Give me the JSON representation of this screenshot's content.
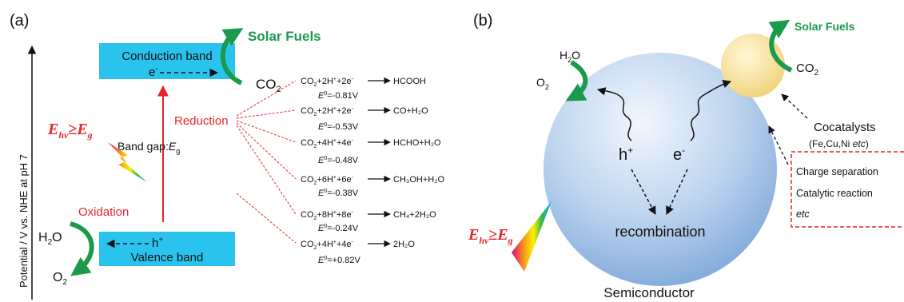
{
  "panel_a": {
    "label": "(a)",
    "axis_label": "Potential / V vs. NHE at pH 7",
    "conduction_band": "Conduction band",
    "valence_band": "Valence band",
    "electron": "e",
    "electron_sup": "-",
    "hole": "h",
    "hole_sup": "+",
    "solar_fuels": "Solar Fuels",
    "co2": "CO",
    "co2_sub": "2",
    "h2o": "H",
    "h2o_sub": "2",
    "h2o_tail": "O",
    "o2": "O",
    "o2_sub": "2",
    "reduction": "Reduction",
    "oxidation": "Oxidation",
    "band_gap": "Band gap:",
    "band_gap_sym": "E",
    "band_gap_sub": "g",
    "energy_cond": {
      "e": "E",
      "hv": "hv",
      "ge": "≥",
      "E": "E",
      "g": "g"
    },
    "colors": {
      "band": "#29c3ee",
      "red": "#e8242a",
      "green": "#1a9a4a"
    },
    "reactions": [
      {
        "lhs_pre": "CO",
        "lhs_sub": "2",
        "lhs_post": "+2H",
        "lhs_sup": "+",
        "lhs_tail": "+2e",
        "lhs_sup2": "-",
        "product": "HCOOH",
        "potential": "=-0.81V"
      },
      {
        "lhs_pre": "CO",
        "lhs_sub": "2",
        "lhs_post": "+2H",
        "lhs_sup": "+",
        "lhs_tail": "+2e",
        "lhs_sup2": "-",
        "product": "CO+H₂O",
        "potential": "=-0.53V"
      },
      {
        "lhs_pre": "CO",
        "lhs_sub": "2",
        "lhs_post": "+4H",
        "lhs_sup": "+",
        "lhs_tail": "+4e",
        "lhs_sup2": "-",
        "product": "HCHO+H₂O",
        "potential": "=-0.48V"
      },
      {
        "lhs_pre": "CO",
        "lhs_sub": "2",
        "lhs_post": "+6H",
        "lhs_sup": "+",
        "lhs_tail": "+6e",
        "lhs_sup2": "-",
        "product": "CH₃OH+H₂O",
        "potential": "=-0.38V"
      },
      {
        "lhs_pre": "CO",
        "lhs_sub": "2",
        "lhs_post": "+8H",
        "lhs_sup": "+",
        "lhs_tail": "+8e",
        "lhs_sup2": "-",
        "product": "CH₄+2H₂O",
        "potential": "=-0.24V"
      },
      {
        "lhs_pre": "CO",
        "lhs_sub": "2",
        "lhs_post": "+4H",
        "lhs_sup": "+",
        "lhs_tail": "+4e",
        "lhs_sup2": "-",
        "product": "2H₂O",
        "potential": "=+0.82V"
      }
    ],
    "potential_symbol": "E",
    "potential_sup": "0"
  },
  "panel_b": {
    "label": "(b)",
    "solar_fuels": "Solar Fuels",
    "co2": "CO",
    "co2_sub": "2",
    "h2o": "H",
    "h2o_sub": "2",
    "h2o_tail": "O",
    "o2": "O",
    "o2_sub": "2",
    "hole": "h",
    "hole_sup": "+",
    "electron": "e",
    "electron_sup": "-",
    "recombination": "recombination",
    "semiconductor": "Semiconductor",
    "cocatalysts": "Cocatalysts",
    "cocatalyst_list": "(Fe,Cu,Ni ",
    "cocatalyst_etc": "etc",
    "cocatalyst_close": ")",
    "box_lines": [
      "Charge separation",
      "Catalytic reaction"
    ],
    "box_etc": "etc",
    "energy_cond": {
      "E": "E",
      "hv": "hv",
      "ge": "≥",
      "E2": "E",
      "g": "g"
    }
  }
}
